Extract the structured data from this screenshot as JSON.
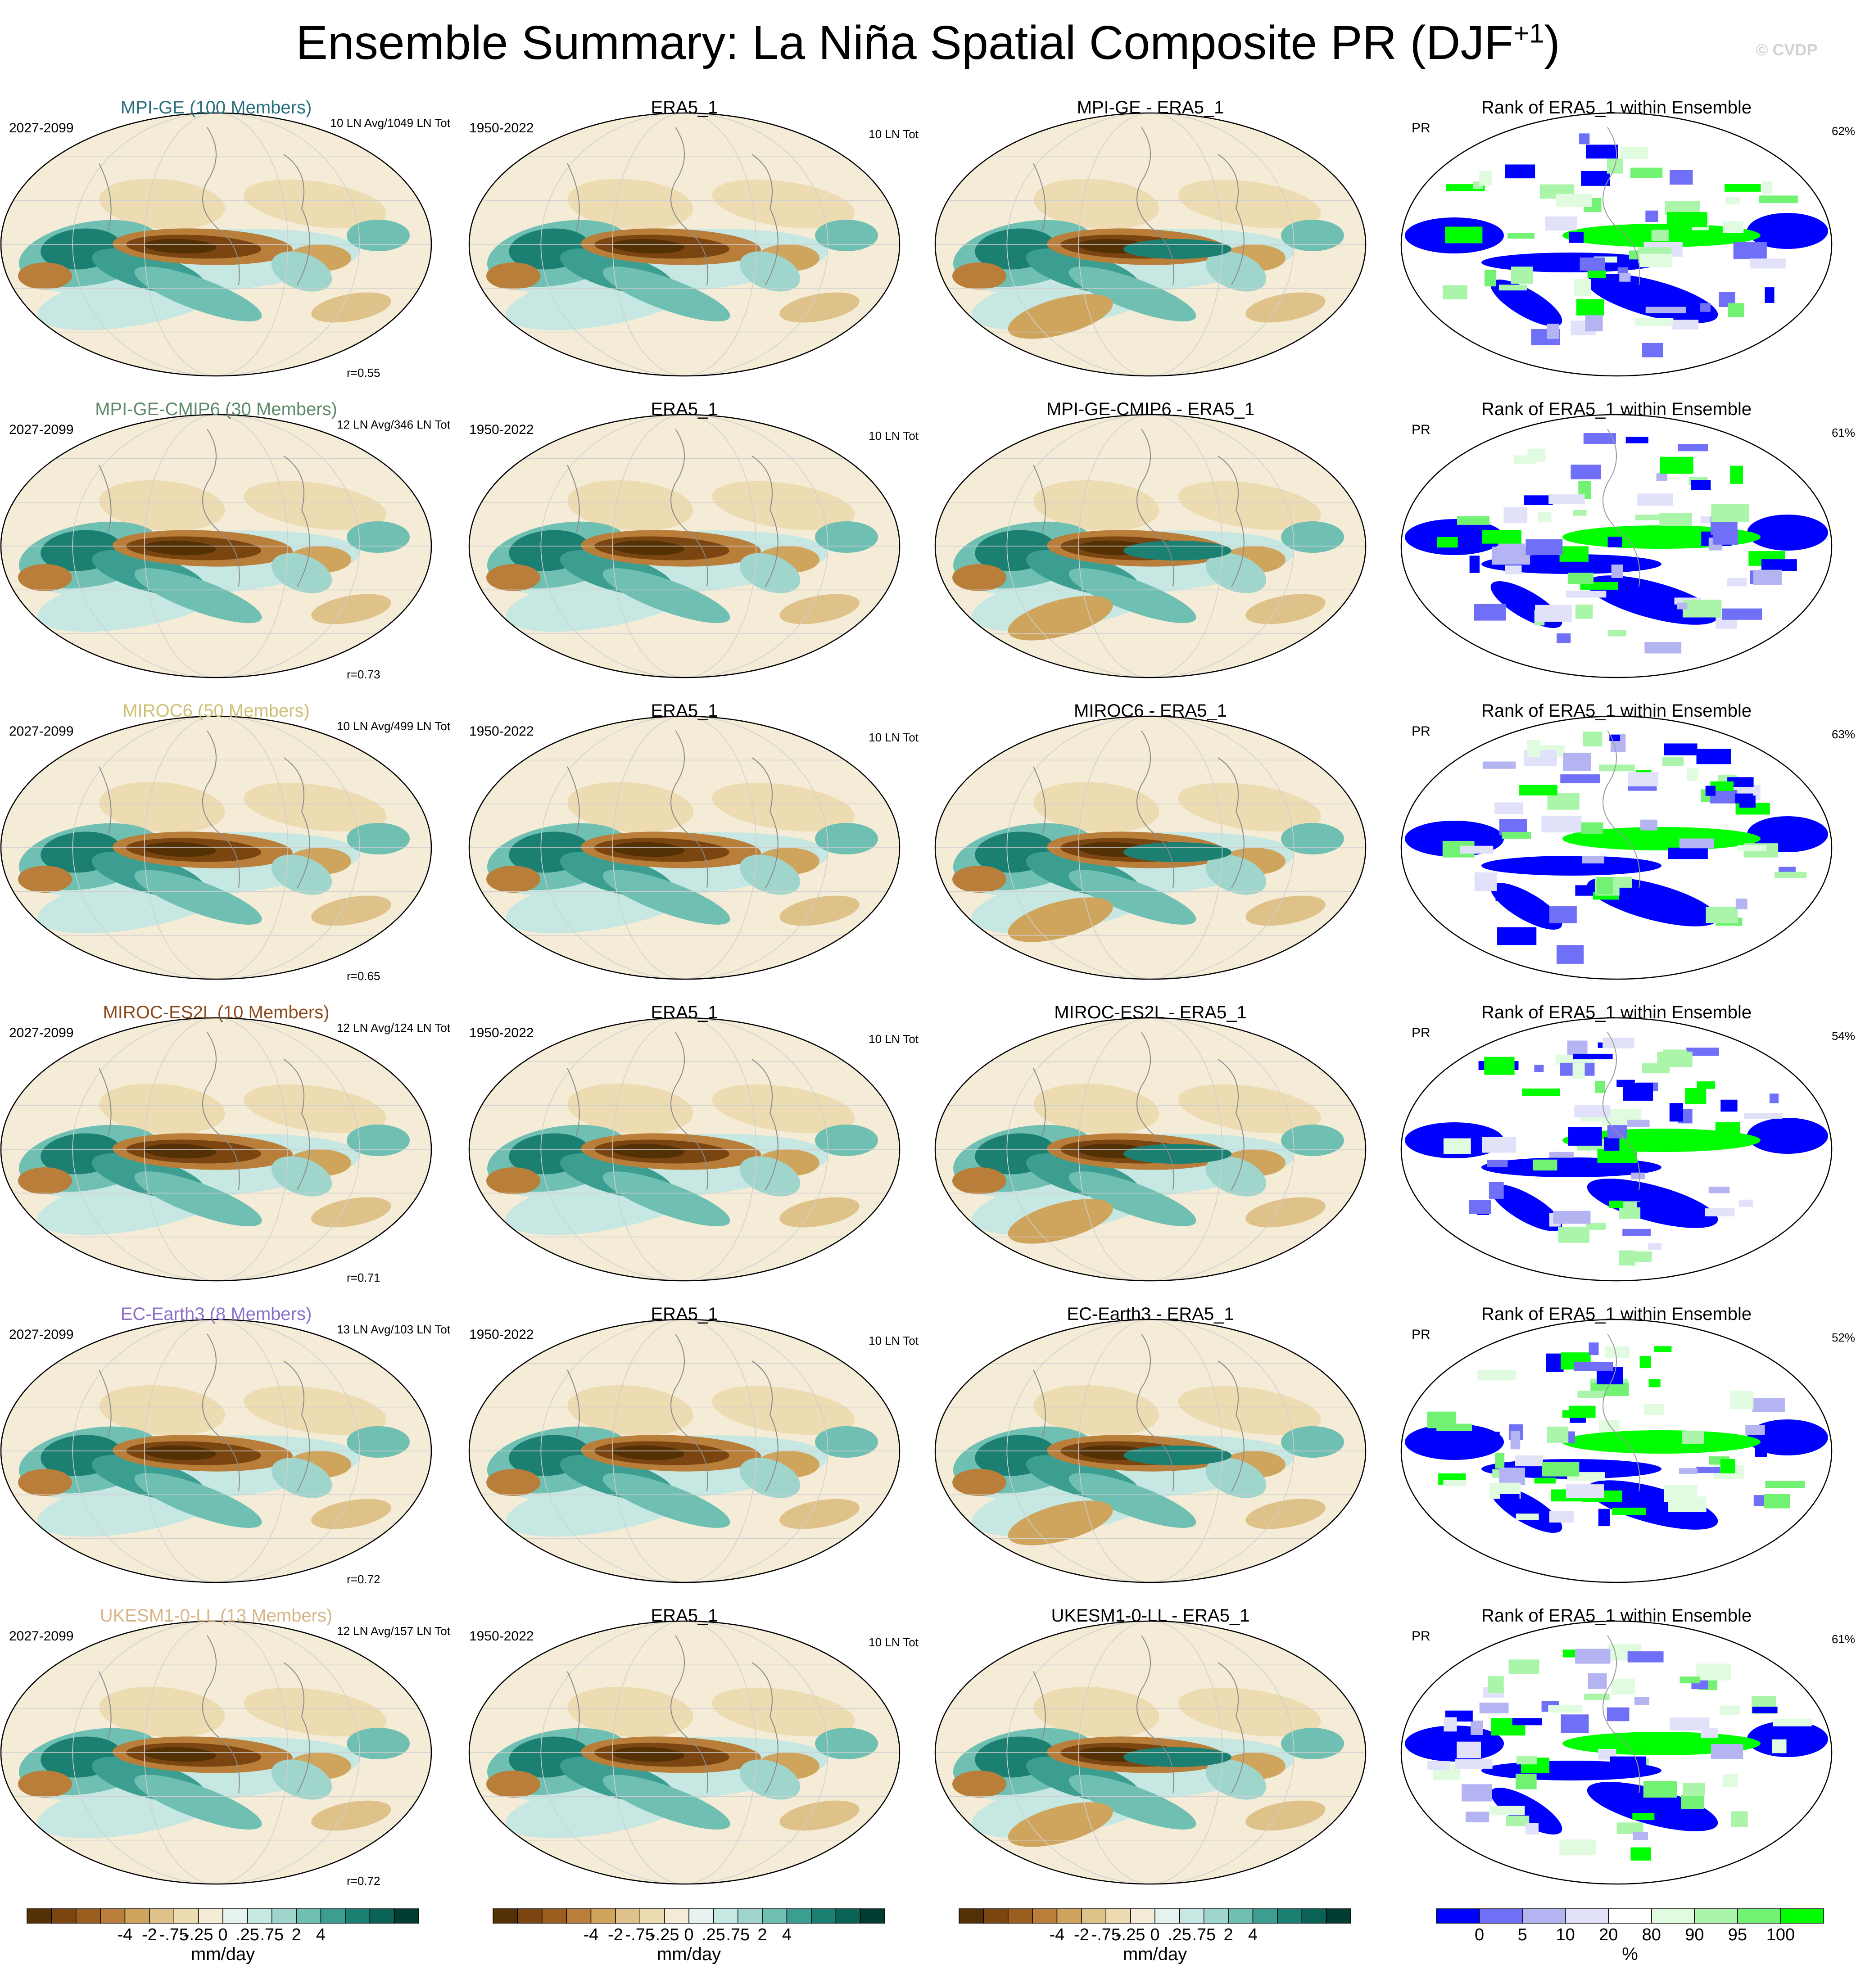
{
  "title": {
    "main": "Ensemble Summary: La Niña Spatial Composite PR (DJF",
    "superscript": "+1",
    "close": ")"
  },
  "watermark": "© CVDP",
  "rows": [
    {
      "model": "MPI-GE (100 Members)",
      "model_color": "#2a6d7d",
      "period": "2027-2099",
      "counts": "10 LN Avg/1049 LN Tot",
      "r": "r=0.55",
      "obs": "ERA5_1",
      "obs_period": "1950-2022",
      "obs_counts": "10 LN Tot",
      "diff": "MPI-GE - ERA5_1",
      "rank_title": "Rank of ERA5_1 within Ensemble",
      "rank_var": "PR",
      "rank_pct": "62%"
    },
    {
      "model": "MPI-GE-CMIP6 (30 Members)",
      "model_color": "#5f8a6a",
      "period": "2027-2099",
      "counts": "12 LN Avg/346 LN Tot",
      "r": "r=0.73",
      "obs": "ERA5_1",
      "obs_period": "1950-2022",
      "obs_counts": "10 LN Tot",
      "diff": "MPI-GE-CMIP6 - ERA5_1",
      "rank_title": "Rank of ERA5_1 within Ensemble",
      "rank_var": "PR",
      "rank_pct": "61%"
    },
    {
      "model": "MIROC6 (50 Members)",
      "model_color": "#cdbf74",
      "period": "2027-2099",
      "counts": "10 LN Avg/499 LN Tot",
      "r": "r=0.65",
      "obs": "ERA5_1",
      "obs_period": "1950-2022",
      "obs_counts": "10 LN Tot",
      "diff": "MIROC6 - ERA5_1",
      "rank_title": "Rank of ERA5_1 within Ensemble",
      "rank_var": "PR",
      "rank_pct": "63%"
    },
    {
      "model": "MIROC-ES2L (10 Members)",
      "model_color": "#8a4a1c",
      "period": "2027-2099",
      "counts": "12 LN Avg/124 LN Tot",
      "r": "r=0.71",
      "obs": "ERA5_1",
      "obs_period": "1950-2022",
      "obs_counts": "10 LN Tot",
      "diff": "MIROC-ES2L - ERA5_1",
      "rank_title": "Rank of ERA5_1 within Ensemble",
      "rank_var": "PR",
      "rank_pct": "54%"
    },
    {
      "model": "EC-Earth3 (8 Members)",
      "model_color": "#8a6fc8",
      "period": "2027-2099",
      "counts": "13 LN Avg/103 LN Tot",
      "r": "r=0.72",
      "obs": "ERA5_1",
      "obs_period": "1950-2022",
      "obs_counts": "10 LN Tot",
      "diff": "EC-Earth3 - ERA5_1",
      "rank_title": "Rank of ERA5_1 within Ensemble",
      "rank_var": "PR",
      "rank_pct": "52%"
    },
    {
      "model": "UKESM1-0-LL (13 Members)",
      "model_color": "#d8b487",
      "period": "2027-2099",
      "counts": "12 LN Avg/157 LN Tot",
      "r": "r=0.72",
      "obs": "ERA5_1",
      "obs_period": "1950-2022",
      "obs_counts": "10 LN Tot",
      "diff": "UKESM1-0-LL - ERA5_1",
      "rank_title": "Rank of ERA5_1 within Ensemble",
      "rank_var": "PR",
      "rank_pct": "61%"
    }
  ],
  "colorbar_pr": {
    "colors": [
      "#543005",
      "#7a4510",
      "#9a5e1e",
      "#b97e3a",
      "#cfa55e",
      "#dfc289",
      "#eddbb1",
      "#f5ecd8",
      "#e6f2ef",
      "#c7e7e2",
      "#a0d5cc",
      "#6fbfb2",
      "#3c9e90",
      "#1b7f72",
      "#0a6156",
      "#003c30"
    ],
    "labels": [
      "-4",
      "-2",
      "-.75",
      "-.25",
      "0",
      ".25",
      ".75",
      "2",
      "4"
    ],
    "unit": "mm/day"
  },
  "colorbar_rank": {
    "colors": [
      "#0000ff",
      "#6f6ff8",
      "#b4b4f2",
      "#e1e1fa",
      "#ffffff",
      "#e0fbe0",
      "#aaf5aa",
      "#72f272",
      "#00ff00"
    ],
    "labels": [
      "0",
      "5",
      "10",
      "20",
      "80",
      "90",
      "95",
      "100"
    ],
    "unit": "%"
  }
}
